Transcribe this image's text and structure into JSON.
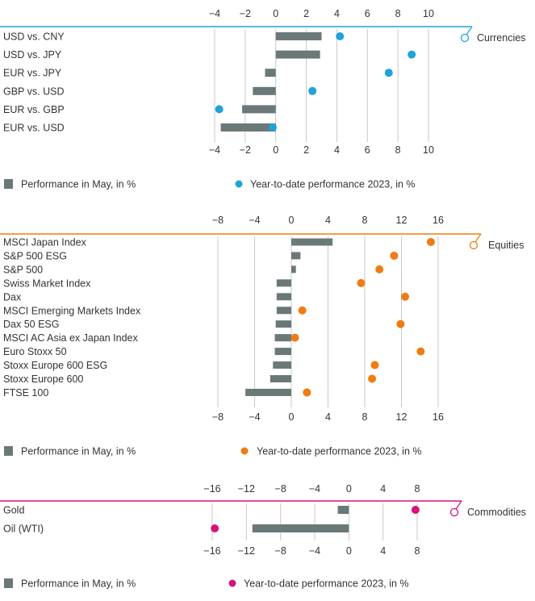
{
  "colors": {
    "bar": "#6b7878",
    "grid": "#c9c9c9",
    "text": "#333333"
  },
  "chart_data": [
    {
      "type": "bar",
      "section_label": "Currencies",
      "accent": "#1fa3d8",
      "ticks": [
        -4,
        -2,
        0,
        2,
        4,
        6,
        8,
        10
      ],
      "xlim": [
        -4,
        10
      ],
      "categories": [
        "USD vs. CNY",
        "USD vs. JPY",
        "EUR vs. JPY",
        "GBP vs. USD",
        "EUR vs. GBP",
        "EUR vs. USD"
      ],
      "series": [
        {
          "name": "Performance in May, in %",
          "kind": "bar",
          "values": [
            3.0,
            2.9,
            -0.7,
            -1.5,
            -2.2,
            -3.6
          ]
        },
        {
          "name": "Year-to-date performance 2023, in %",
          "kind": "dot",
          "values": [
            4.2,
            8.9,
            7.4,
            2.4,
            -3.7,
            -0.2
          ]
        }
      ],
      "legend": {
        "bar": "Performance in May, in %",
        "dot": "Year-to-date performance 2023, in %"
      }
    },
    {
      "type": "bar",
      "section_label": "Equities",
      "accent": "#f07b12",
      "ticks": [
        -8,
        -4,
        0,
        4,
        8,
        12,
        16
      ],
      "xlim": [
        -8,
        16
      ],
      "categories": [
        "MSCI Japan Index",
        "S&P 500 ESG",
        "S&P 500",
        "Swiss Market Index",
        "Dax",
        "MSCI Emerging Markets Index",
        "Dax 50 ESG",
        "MSCI AC Asia ex Japan Index",
        "Euro Stoxx 50",
        "Stoxx Europe 600 ESG",
        "Stoxx Europe 600",
        "FTSE 100"
      ],
      "series": [
        {
          "name": "Performance in May, in %",
          "kind": "bar",
          "values": [
            4.5,
            1.0,
            0.5,
            -1.6,
            -1.6,
            -1.6,
            -1.7,
            -1.8,
            -1.8,
            -2.0,
            -2.3,
            -5.0
          ]
        },
        {
          "name": "Year-to-date performance 2023, in %",
          "kind": "dot",
          "values": [
            15.2,
            11.2,
            9.6,
            7.6,
            12.4,
            1.2,
            11.9,
            0.4,
            14.1,
            9.1,
            8.8,
            1.7
          ]
        }
      ],
      "legend": {
        "bar": "Performance in May, in %",
        "dot": "Year-to-date performance 2023, in %"
      }
    },
    {
      "type": "bar",
      "section_label": "Commodities",
      "accent": "#d6127b",
      "ticks": [
        -16,
        -12,
        -8,
        -4,
        0,
        4,
        8
      ],
      "xlim": [
        -16,
        8
      ],
      "categories": [
        "Gold",
        "Oil (WTI)"
      ],
      "series": [
        {
          "name": "Performance in May, in %",
          "kind": "bar",
          "values": [
            -1.3,
            -11.3
          ]
        },
        {
          "name": "Year-to-date performance 2023, in %",
          "kind": "dot",
          "values": [
            7.8,
            -15.7
          ]
        }
      ],
      "legend": {
        "bar": "Performance in May, in %",
        "dot": "Year-to-date performance 2023, in %"
      }
    }
  ]
}
